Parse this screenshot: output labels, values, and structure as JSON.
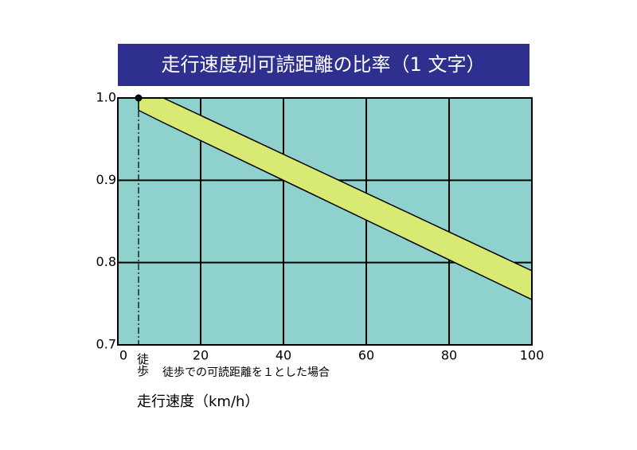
{
  "chart_data": {
    "type": "band",
    "title": "走行速度別可読距離の比率（1 文字）",
    "x_label": "走行速度（km/h）",
    "annotation": "徒歩での可読距離を１とした場合",
    "x": [
      5,
      11,
      100
    ],
    "series": [
      {
        "color": "#d9ea74",
        "values": [
          1.0,
          1.0,
          0.79
        ]
      },
      {
        "color": "#d9ea74",
        "values": [
          0.985,
          0.97,
          0.755
        ]
      }
    ],
    "marker": {
      "x": 5,
      "y": 1.0,
      "label": "徒歩"
    },
    "xlim": [
      0,
      100
    ],
    "xticks": [
      0,
      20,
      40,
      60,
      80,
      100
    ],
    "ylim": [
      0.7,
      1.0
    ],
    "yticks": [
      0.7,
      0.8,
      0.9,
      {
        "value": 1.0,
        "label": "1.0"
      }
    ],
    "grid": true,
    "background": "#8fd2cd",
    "title_background": "#2e2f8f"
  }
}
